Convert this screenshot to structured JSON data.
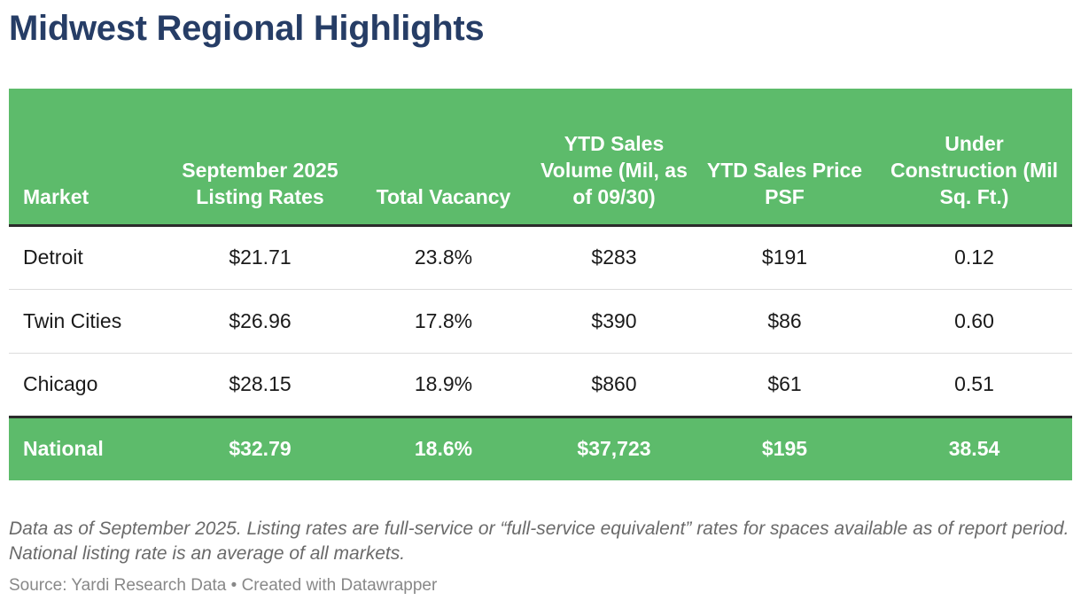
{
  "title": "Midwest Regional Highlights",
  "chart_data": {
    "type": "table",
    "title": "Midwest Regional Highlights",
    "columns": [
      "Market",
      "September 2025 Listing Rates",
      "Total Vacancy",
      "YTD Sales Volume (Mil, as of 09/30)",
      "YTD Sales Price PSF",
      "Under Construction (Mil Sq. Ft.)"
    ],
    "rows": [
      [
        "Detroit",
        "$21.71",
        "23.8%",
        "$283",
        "$191",
        "0.12"
      ],
      [
        "Twin Cities",
        "$26.96",
        "17.8%",
        "$390",
        "$86",
        "0.60"
      ],
      [
        "Chicago",
        "$28.15",
        "18.9%",
        "$860",
        "$61",
        "0.51"
      ]
    ],
    "total_row": [
      "National",
      "$32.79",
      "18.6%",
      "$37,723",
      "$195",
      "38.54"
    ]
  },
  "notes": "Data as of September 2025. Listing rates are full-service or “full-service equivalent” rates for spaces available as of report period. National listing rate is an average of all markets.",
  "source": "Source: Yardi Research Data • Created with Datawrapper",
  "colors": {
    "header_bg": "#5dbb6b",
    "title": "#263d66"
  }
}
